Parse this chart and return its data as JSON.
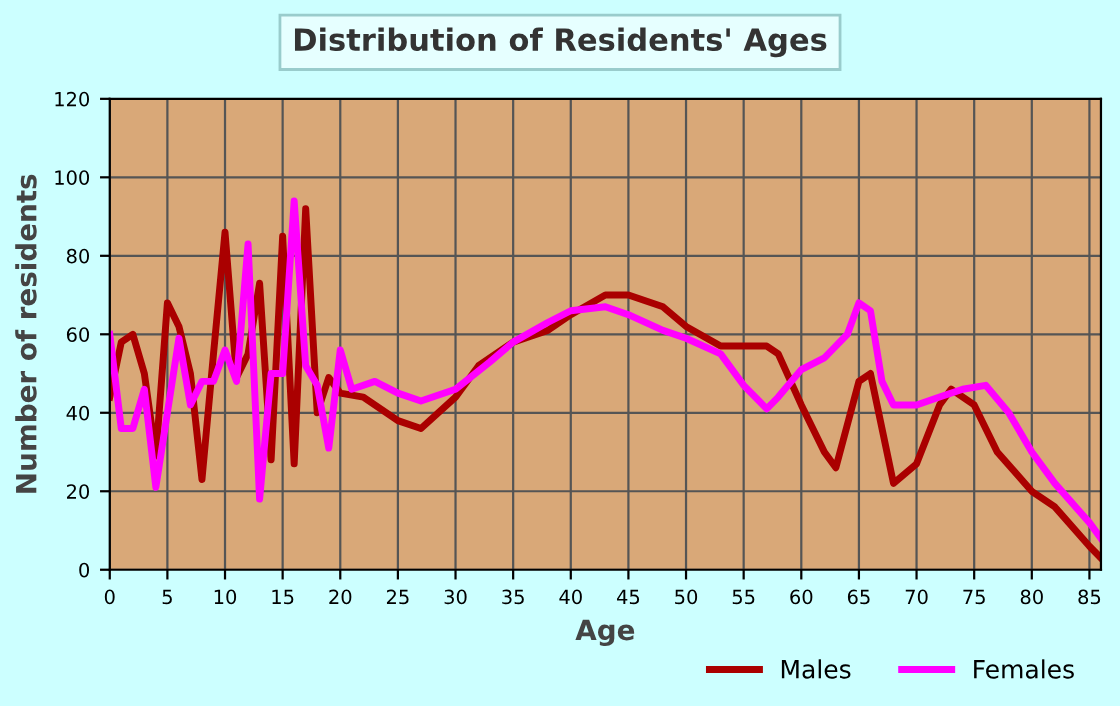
{
  "chart_data": {
    "type": "line",
    "title": "Distribution of Residents' Ages",
    "xlabel": "Age",
    "ylabel": "Number of residents",
    "xlim": [
      0,
      86
    ],
    "xticks": [
      0,
      5,
      10,
      15,
      20,
      25,
      30,
      35,
      40,
      45,
      50,
      55,
      60,
      65,
      70,
      75,
      80,
      85
    ],
    "ylim": [
      0,
      120
    ],
    "yticks": [
      0,
      20,
      40,
      60,
      80,
      100,
      120
    ],
    "grid": true,
    "legend": "bottom right",
    "series": [
      {
        "name": "Males",
        "color": "#aa0000",
        "x": [
          0,
          1,
          2,
          3,
          4,
          5,
          6,
          7,
          8,
          9,
          10,
          11,
          12,
          13,
          14,
          15,
          16,
          17,
          18,
          19,
          20,
          22,
          25,
          27,
          30,
          32,
          35,
          38,
          40,
          43,
          45,
          48,
          50,
          53,
          55,
          57,
          58,
          60,
          62,
          63,
          65,
          66,
          68,
          70,
          72,
          73,
          75,
          77,
          80,
          82,
          85,
          86
        ],
        "values": [
          44,
          58,
          60,
          50,
          29,
          68,
          62,
          50,
          23,
          55,
          86,
          49,
          55,
          73,
          28,
          85,
          27,
          92,
          40,
          49,
          45,
          44,
          38,
          36,
          44,
          52,
          58,
          61,
          65,
          70,
          70,
          67,
          62,
          57,
          57,
          57,
          55,
          42,
          30,
          26,
          48,
          50,
          22,
          27,
          42,
          46,
          42,
          30,
          20,
          16,
          6,
          3
        ]
      },
      {
        "name": "Females",
        "color": "#ff00ff",
        "x": [
          0,
          1,
          2,
          3,
          4,
          5,
          6,
          7,
          8,
          9,
          10,
          11,
          12,
          13,
          14,
          15,
          16,
          17,
          18,
          19,
          20,
          21,
          23,
          25,
          27,
          30,
          33,
          35,
          38,
          40,
          43,
          45,
          48,
          50,
          53,
          55,
          57,
          58,
          60,
          62,
          64,
          65,
          66,
          67,
          68,
          70,
          72,
          74,
          76,
          78,
          80,
          82,
          85,
          86
        ],
        "values": [
          60,
          36,
          36,
          46,
          21,
          40,
          59,
          42,
          48,
          48,
          56,
          48,
          83,
          18,
          50,
          50,
          94,
          52,
          47,
          31,
          56,
          46,
          48,
          45,
          43,
          46,
          53,
          58,
          63,
          66,
          67,
          65,
          61,
          59,
          55,
          47,
          41,
          44,
          51,
          54,
          60,
          68,
          66,
          48,
          42,
          42,
          44,
          46,
          47,
          40,
          30,
          22,
          12,
          8
        ]
      }
    ]
  }
}
